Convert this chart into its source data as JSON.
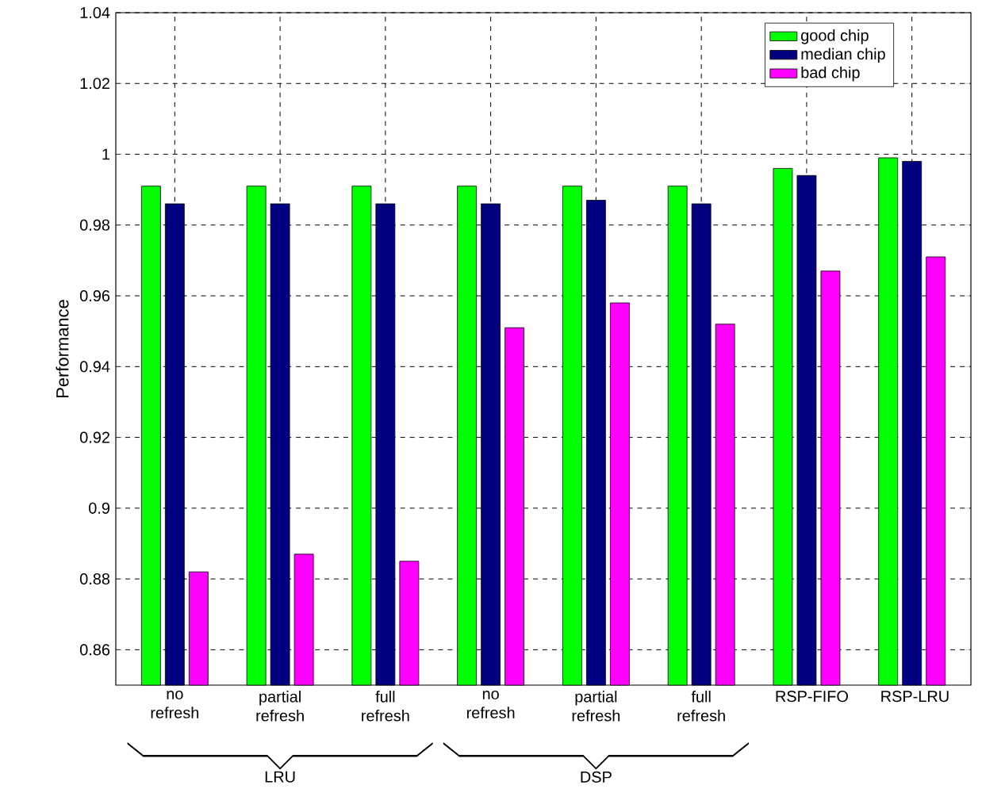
{
  "chart_data": {
    "type": "bar",
    "ylabel": "Performance",
    "categories": [
      "no refresh",
      "partial refresh",
      "full refresh",
      "no refresh",
      "partial refresh",
      "full refresh",
      "RSP-FIFO",
      "RSP-LRU"
    ],
    "series": [
      {
        "name": "good chip",
        "color": "#00ff00",
        "values": [
          0.991,
          0.991,
          0.991,
          0.991,
          0.991,
          0.991,
          0.996,
          0.999
        ]
      },
      {
        "name": "median chip",
        "color": "#000080",
        "values": [
          0.986,
          0.986,
          0.986,
          0.986,
          0.987,
          0.986,
          0.994,
          0.998
        ]
      },
      {
        "name": "bad chip",
        "color": "#ff00ff",
        "values": [
          0.882,
          0.887,
          0.885,
          0.951,
          0.958,
          0.952,
          0.967,
          0.971
        ]
      }
    ],
    "ylim": [
      0.85,
      1.04
    ],
    "yticks": [
      0.86,
      0.88,
      0.9,
      0.92,
      0.94,
      0.96,
      0.98,
      1,
      1.02,
      1.04
    ],
    "grid": true,
    "legend": "top right",
    "annotations": [
      "LRU",
      "DSP"
    ]
  }
}
